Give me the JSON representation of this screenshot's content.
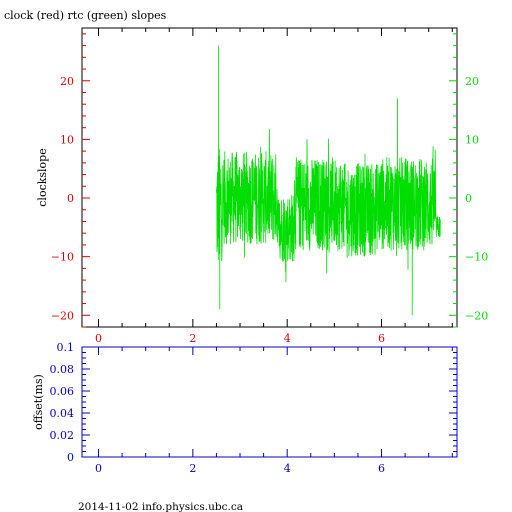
{
  "title": "clock (red) rtc (green) slopes",
  "footer": "2014-11-02 info.physics.ubc.ca",
  "colors": {
    "red": "#dd0000",
    "green": "#00dd00",
    "blue": "#0000cc",
    "axis": "#000000"
  },
  "chart_data": [
    {
      "type": "line",
      "ylabel": "clockslope",
      "xlim": [
        -0.35,
        7.6
      ],
      "ylim": [
        -22,
        29
      ],
      "grid": false,
      "xticks": [
        0,
        2,
        4,
        6
      ],
      "xtick_labels": [
        "0",
        "2",
        "4",
        "6"
      ],
      "yticks_left": [
        -20,
        -10,
        0,
        10,
        20
      ],
      "yticks_left_labels": [
        "−20",
        "−10",
        "0",
        "10",
        "20"
      ],
      "yticks_right": [
        -20,
        -10,
        0,
        10,
        20
      ],
      "yticks_right_labels": [
        "−20",
        "−10",
        "0",
        "10",
        "20"
      ],
      "left_axis_color": "red",
      "right_axis_color": "green",
      "series": [
        {
          "color": "green",
          "x_start": 2.5,
          "x_end": 7.25,
          "segments": [
            {
              "x0": 2.5,
              "x1": 2.62,
              "center": -2,
              "spread": 11,
              "spike_max": 26,
              "spike_min": -19
            },
            {
              "x0": 2.62,
              "x1": 3.8,
              "center": 0,
              "spread": 8
            },
            {
              "x0": 3.8,
              "x1": 4.15,
              "center": -5,
              "spread": 6
            },
            {
              "x0": 4.15,
              "x1": 5.2,
              "center": -1,
              "spread": 8
            },
            {
              "x0": 5.2,
              "x1": 5.9,
              "center": -2,
              "spread": 8
            },
            {
              "x0": 5.9,
              "x1": 7.15,
              "center": -1,
              "spread": 8,
              "spike_max": 17,
              "spike_min": -20
            },
            {
              "x0": 7.15,
              "x1": 7.25,
              "center": -5,
              "spread": 2
            }
          ]
        }
      ]
    },
    {
      "type": "line",
      "ylabel": "offset(ms)",
      "xlim": [
        -0.35,
        7.6
      ],
      "ylim": [
        0,
        0.1
      ],
      "grid": false,
      "xticks": [
        0,
        2,
        4,
        6
      ],
      "xtick_labels": [
        "0",
        "2",
        "4",
        "6"
      ],
      "yticks": [
        0,
        0.02,
        0.04,
        0.06,
        0.08,
        0.1
      ],
      "ytick_labels": [
        "0",
        "0.02",
        "0.04",
        "0.06",
        "0.08",
        "0.1"
      ],
      "axis_color": "blue",
      "series": []
    }
  ]
}
